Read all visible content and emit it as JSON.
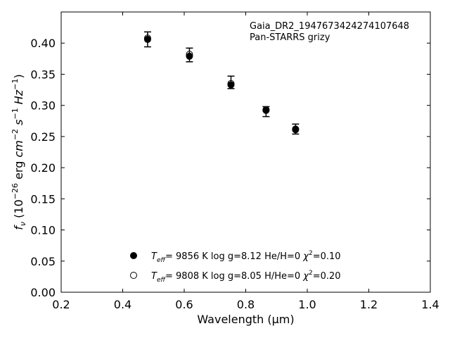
{
  "chart_data": {
    "type": "scatter",
    "xlabel": "Wavelength (μm)",
    "ylabel": "f_ν (10^-26 erg cm^-2 s^-1 Hz^-1)",
    "xlim": [
      0.2,
      1.4
    ],
    "ylim": [
      0.0,
      0.45
    ],
    "x_ticks": [
      0.2,
      0.4,
      0.6,
      0.8,
      1.0,
      1.2,
      1.4
    ],
    "x_tick_labels": [
      "0.2",
      "0.4",
      "0.6",
      "0.8",
      "1.0",
      "1.2",
      "1.4"
    ],
    "y_ticks": [
      0.0,
      0.05,
      0.1,
      0.15,
      0.2,
      0.25,
      0.3,
      0.35,
      0.4
    ],
    "y_tick_labels": [
      "0.00",
      "0.05",
      "0.10",
      "0.15",
      "0.20",
      "0.25",
      "0.30",
      "0.35",
      "0.40"
    ],
    "grid": false,
    "annotation": [
      "Gaia_DR2_1947673424274107648",
      "Pan-STARRS grizy"
    ],
    "observed": {
      "x": [
        0.481,
        0.617,
        0.752,
        0.866,
        0.962
      ],
      "y": [
        0.406,
        0.381,
        0.337,
        0.29,
        0.262
      ],
      "yerr": [
        0.012,
        0.011,
        0.01,
        0.008,
        0.008
      ]
    },
    "series": [
      {
        "marker": "filled",
        "color": "#000000",
        "label": {
          "teff": "9856 K",
          "logg": "log g=8.12",
          "comp": "He/H=0",
          "chi2": "=0.10"
        },
        "x": [
          0.481,
          0.617,
          0.752,
          0.866,
          0.962
        ],
        "y": [
          0.406,
          0.379,
          0.333,
          0.292,
          0.261
        ]
      },
      {
        "marker": "open",
        "color": "#000000",
        "label": {
          "teff": "9808 K",
          "logg": "log g=8.05",
          "comp": "H/He=0",
          "chi2": "=0.20"
        },
        "x": [
          0.481,
          0.617,
          0.752,
          0.866,
          0.962
        ],
        "y": [
          0.408,
          0.382,
          0.335,
          0.293,
          0.262
        ]
      }
    ]
  }
}
